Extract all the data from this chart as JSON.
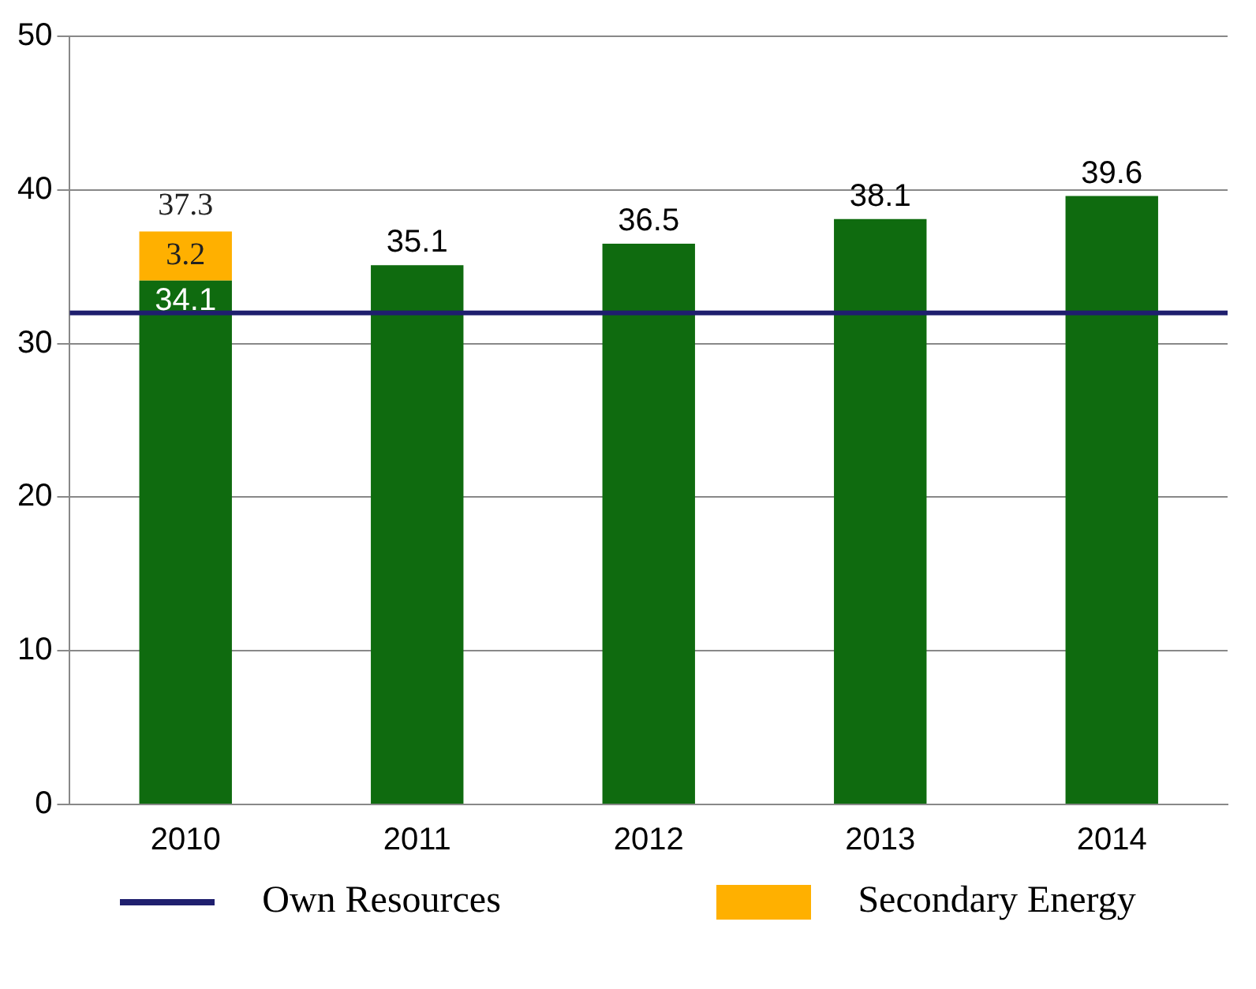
{
  "chart_data": {
    "type": "bar",
    "stacked": true,
    "categories": [
      "2010",
      "2011",
      "2012",
      "2013",
      "2014"
    ],
    "series": [
      {
        "color": "#0f6b0f",
        "values": [
          34.1,
          35.1,
          36.5,
          38.1,
          39.6
        ]
      },
      {
        "name": "Secondary Energy",
        "color": "#ffb000",
        "values": [
          3.2,
          null,
          null,
          null,
          null
        ]
      }
    ],
    "ref_lines": [
      {
        "axis": "y",
        "value": 32,
        "label": "Own Resources",
        "color": "#1f1f6e"
      }
    ],
    "totals": [
      "37.3",
      null,
      null,
      null,
      null
    ],
    "data_labels": true,
    "ylim": [
      0,
      50
    ],
    "yticks": [
      0,
      10,
      20,
      30,
      40,
      50
    ],
    "grid": "y",
    "legend": "bottom"
  }
}
